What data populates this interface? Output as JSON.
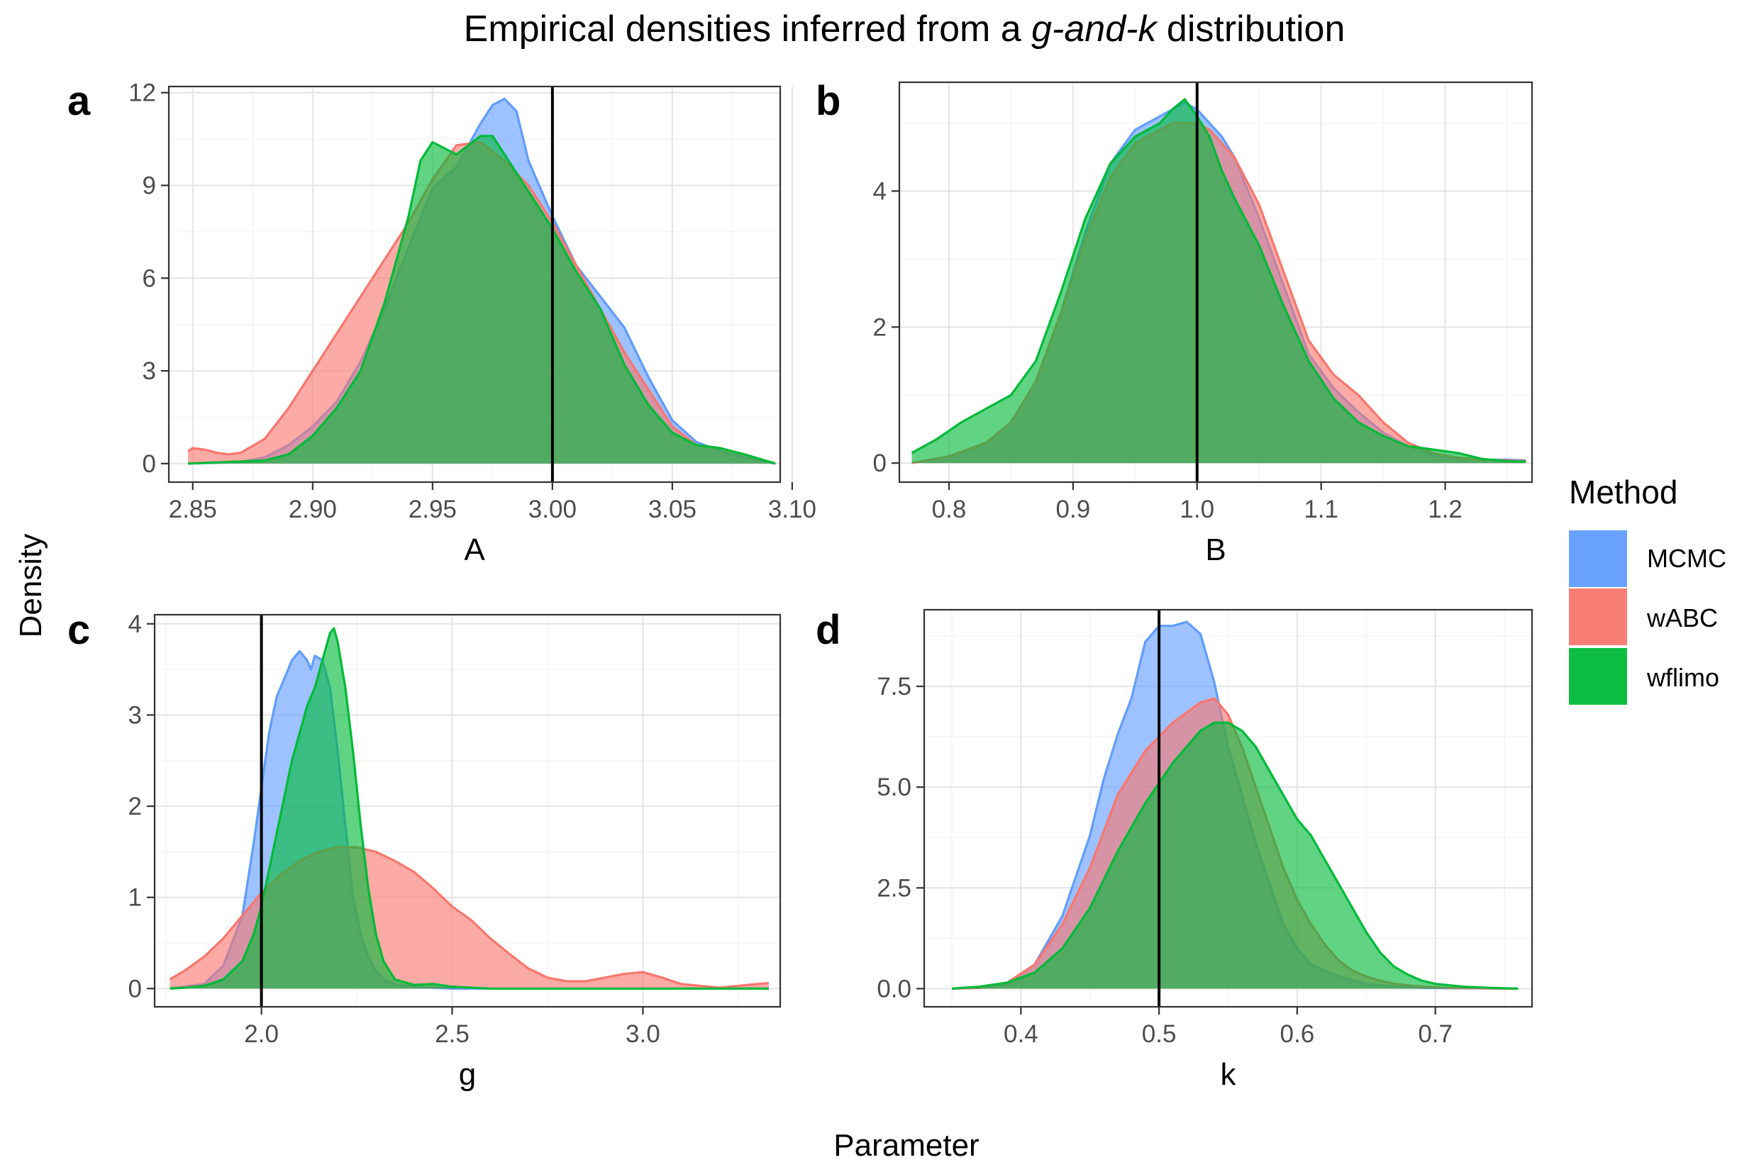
{
  "title": {
    "prefix": "Empirical densities inferred from a ",
    "italic": "g-and-k",
    "suffix": " distribution"
  },
  "shared_y_label": "Density",
  "shared_x_label": "Parameter",
  "legend": {
    "title": "Method",
    "entries": [
      {
        "name": "MCMC",
        "color": "#619CFF"
      },
      {
        "name": "wABC",
        "color": "#F8766D"
      },
      {
        "name": "wflimo",
        "color": "#00BA38"
      }
    ]
  },
  "chart_data": [
    {
      "type": "area",
      "panel": "a",
      "xlabel": "A",
      "xlim": [
        2.84,
        3.095
      ],
      "ylim": [
        -0.6,
        12.2
      ],
      "xticks": [
        2.85,
        2.9,
        2.95,
        3.0,
        3.05,
        3.1
      ],
      "xtick_labels": [
        "2.85",
        "2.90",
        "2.95",
        "3.00",
        "3.05",
        "3.10"
      ],
      "yticks": [
        0,
        3,
        6,
        9,
        12
      ],
      "ytick_labels": [
        "0",
        "3",
        "6",
        "9",
        "12"
      ],
      "true_value": 3.0,
      "series": [
        {
          "name": "MCMC",
          "x": [
            2.848,
            2.87,
            2.88,
            2.89,
            2.9,
            2.91,
            2.92,
            2.93,
            2.94,
            2.95,
            2.96,
            2.97,
            2.975,
            2.98,
            2.985,
            2.99,
            3.0,
            3.01,
            3.02,
            3.03,
            3.04,
            3.05,
            3.06,
            3.07,
            3.08,
            3.093
          ],
          "y": [
            0,
            0.05,
            0.2,
            0.6,
            1.2,
            2.0,
            3.3,
            5.0,
            7.0,
            8.9,
            9.6,
            11.0,
            11.6,
            11.8,
            11.4,
            9.8,
            8.0,
            6.4,
            5.4,
            4.4,
            2.8,
            1.4,
            0.7,
            0.4,
            0.2,
            0
          ]
        },
        {
          "name": "wABC",
          "x": [
            2.848,
            2.85,
            2.855,
            2.86,
            2.865,
            2.87,
            2.88,
            2.89,
            2.9,
            2.91,
            2.92,
            2.93,
            2.94,
            2.95,
            2.96,
            2.97,
            2.98,
            2.99,
            3.0,
            3.01,
            3.02,
            3.03,
            3.04,
            3.05,
            3.06,
            3.07,
            3.08,
            3.093
          ],
          "y": [
            0.4,
            0.5,
            0.45,
            0.35,
            0.3,
            0.35,
            0.8,
            1.8,
            3.0,
            4.2,
            5.4,
            6.6,
            7.8,
            9.2,
            10.3,
            10.4,
            9.8,
            9.0,
            7.8,
            6.4,
            5.0,
            3.6,
            2.4,
            1.2,
            0.6,
            0.5,
            0.3,
            0
          ]
        },
        {
          "name": "wflimo",
          "x": [
            2.848,
            2.88,
            2.89,
            2.9,
            2.91,
            2.92,
            2.93,
            2.94,
            2.945,
            2.95,
            2.955,
            2.96,
            2.965,
            2.97,
            2.975,
            2.98,
            2.99,
            3.0,
            3.01,
            3.02,
            3.03,
            3.04,
            3.05,
            3.06,
            3.07,
            3.08,
            3.093
          ],
          "y": [
            0,
            0.1,
            0.3,
            0.9,
            1.8,
            3.0,
            5.2,
            8.0,
            9.8,
            10.4,
            10.2,
            10.0,
            10.3,
            10.6,
            10.6,
            10.0,
            8.8,
            7.6,
            6.2,
            5.0,
            3.2,
            1.9,
            1.0,
            0.6,
            0.5,
            0.3,
            0
          ]
        }
      ]
    },
    {
      "type": "area",
      "panel": "b",
      "xlabel": "B",
      "xlim": [
        0.76,
        1.27
      ],
      "ylim": [
        -0.28,
        5.6
      ],
      "xticks": [
        0.8,
        0.9,
        1.0,
        1.1,
        1.2
      ],
      "xtick_labels": [
        "0.8",
        "0.9",
        "1.0",
        "1.1",
        "1.2"
      ],
      "yticks": [
        0,
        2,
        4
      ],
      "ytick_labels": [
        "0",
        "2",
        "4"
      ],
      "true_value": 1.0,
      "series": [
        {
          "name": "MCMC",
          "x": [
            0.77,
            0.8,
            0.83,
            0.85,
            0.87,
            0.89,
            0.91,
            0.93,
            0.95,
            0.97,
            0.98,
            0.99,
            1.0,
            1.01,
            1.02,
            1.03,
            1.05,
            1.07,
            1.09,
            1.11,
            1.13,
            1.15,
            1.17,
            1.19,
            1.21,
            1.23,
            1.25,
            1.265
          ],
          "y": [
            0,
            0.1,
            0.3,
            0.6,
            1.2,
            2.2,
            3.4,
            4.4,
            4.9,
            5.1,
            5.2,
            5.3,
            5.2,
            5.0,
            4.8,
            4.5,
            3.6,
            2.6,
            1.6,
            1.1,
            0.75,
            0.45,
            0.25,
            0.12,
            0.07,
            0.05,
            0.05,
            0.04
          ]
        },
        {
          "name": "wABC",
          "x": [
            0.77,
            0.8,
            0.83,
            0.85,
            0.87,
            0.89,
            0.91,
            0.93,
            0.95,
            0.97,
            0.98,
            0.99,
            1.0,
            1.01,
            1.02,
            1.03,
            1.05,
            1.07,
            1.09,
            1.11,
            1.13,
            1.15,
            1.17,
            1.19,
            1.21,
            1.23,
            1.25,
            1.265
          ],
          "y": [
            0,
            0.1,
            0.3,
            0.6,
            1.2,
            2.2,
            3.3,
            4.2,
            4.7,
            4.9,
            5.0,
            5.0,
            5.0,
            4.9,
            4.7,
            4.5,
            3.8,
            2.8,
            1.8,
            1.3,
            1.0,
            0.6,
            0.3,
            0.15,
            0.08,
            0.05,
            0.04,
            0.03
          ]
        },
        {
          "name": "wflimo",
          "x": [
            0.77,
            0.79,
            0.81,
            0.83,
            0.85,
            0.87,
            0.89,
            0.91,
            0.93,
            0.95,
            0.97,
            0.98,
            0.99,
            1.0,
            1.01,
            1.02,
            1.03,
            1.05,
            1.07,
            1.09,
            1.11,
            1.13,
            1.15,
            1.17,
            1.19,
            1.21,
            1.23,
            1.25,
            1.265
          ],
          "y": [
            0.15,
            0.35,
            0.6,
            0.8,
            1.0,
            1.5,
            2.5,
            3.6,
            4.4,
            4.8,
            5.0,
            5.2,
            5.35,
            5.1,
            4.8,
            4.3,
            3.9,
            3.2,
            2.3,
            1.5,
            0.95,
            0.6,
            0.4,
            0.25,
            0.2,
            0.15,
            0.06,
            0.03,
            0.02
          ]
        }
      ]
    },
    {
      "type": "area",
      "panel": "c",
      "xlabel": "g",
      "xlim": [
        1.72,
        3.36
      ],
      "ylim": [
        -0.2,
        4.1
      ],
      "xticks": [
        2.0,
        2.5,
        3.0
      ],
      "xtick_labels": [
        "2.0",
        "2.5",
        "3.0"
      ],
      "yticks": [
        0,
        1,
        2,
        3,
        4
      ],
      "ytick_labels": [
        "0",
        "1",
        "2",
        "3",
        "4"
      ],
      "true_value": 2.0,
      "series": [
        {
          "name": "MCMC",
          "x": [
            1.76,
            1.85,
            1.9,
            1.95,
            1.98,
            2.0,
            2.02,
            2.04,
            2.06,
            2.08,
            2.1,
            2.12,
            2.13,
            2.14,
            2.16,
            2.18,
            2.2,
            2.22,
            2.24,
            2.26,
            2.28,
            2.3,
            2.32,
            2.35,
            2.4,
            2.45,
            2.5,
            2.6,
            3.33
          ],
          "y": [
            0,
            0.05,
            0.25,
            0.8,
            1.6,
            2.2,
            2.8,
            3.2,
            3.4,
            3.6,
            3.7,
            3.6,
            3.5,
            3.65,
            3.6,
            3.3,
            2.6,
            1.8,
            1.0,
            0.6,
            0.35,
            0.2,
            0.1,
            0.05,
            0.02,
            0.01,
            0,
            0,
            0
          ]
        },
        {
          "name": "wABC",
          "x": [
            1.76,
            1.8,
            1.85,
            1.9,
            1.95,
            2.0,
            2.05,
            2.1,
            2.15,
            2.2,
            2.25,
            2.3,
            2.35,
            2.4,
            2.45,
            2.5,
            2.55,
            2.6,
            2.65,
            2.7,
            2.75,
            2.8,
            2.85,
            2.9,
            2.95,
            3.0,
            3.05,
            3.1,
            3.2,
            3.3,
            3.33
          ],
          "y": [
            0.1,
            0.2,
            0.35,
            0.55,
            0.8,
            1.05,
            1.25,
            1.4,
            1.5,
            1.55,
            1.55,
            1.5,
            1.4,
            1.28,
            1.1,
            0.9,
            0.75,
            0.55,
            0.38,
            0.22,
            0.12,
            0.08,
            0.08,
            0.12,
            0.16,
            0.18,
            0.12,
            0.05,
            0.01,
            0.05,
            0.06
          ]
        },
        {
          "name": "wflimo",
          "x": [
            1.76,
            1.8,
            1.85,
            1.9,
            1.95,
            1.98,
            2.0,
            2.02,
            2.04,
            2.06,
            2.08,
            2.1,
            2.12,
            2.14,
            2.16,
            2.18,
            2.19,
            2.2,
            2.22,
            2.24,
            2.26,
            2.28,
            2.3,
            2.32,
            2.35,
            2.4,
            2.45,
            2.5,
            2.6,
            3.33
          ],
          "y": [
            0,
            0.01,
            0.03,
            0.1,
            0.3,
            0.6,
            0.9,
            1.3,
            1.7,
            2.1,
            2.5,
            2.8,
            3.1,
            3.3,
            3.6,
            3.9,
            3.95,
            3.8,
            3.3,
            2.6,
            1.8,
            1.1,
            0.6,
            0.3,
            0.1,
            0.04,
            0.05,
            0.02,
            0,
            0
          ]
        }
      ]
    },
    {
      "type": "area",
      "panel": "d",
      "xlabel": "k",
      "xlim": [
        0.33,
        0.77
      ],
      "ylim": [
        -0.45,
        9.4
      ],
      "xticks": [
        0.4,
        0.5,
        0.6,
        0.7
      ],
      "xtick_labels": [
        "0.4",
        "0.5",
        "0.6",
        "0.7"
      ],
      "yticks": [
        0,
        2.5,
        5.0,
        7.5
      ],
      "ytick_labels": [
        "0.0",
        "2.5",
        "5.0",
        "7.5"
      ],
      "true_value": 0.5,
      "series": [
        {
          "name": "MCMC",
          "x": [
            0.35,
            0.37,
            0.39,
            0.41,
            0.43,
            0.45,
            0.46,
            0.47,
            0.48,
            0.49,
            0.5,
            0.51,
            0.52,
            0.53,
            0.54,
            0.55,
            0.56,
            0.57,
            0.58,
            0.59,
            0.6,
            0.61,
            0.63,
            0.65,
            0.67,
            0.69,
            0.71,
            0.76
          ],
          "y": [
            0,
            0.02,
            0.1,
            0.6,
            1.8,
            3.8,
            5.2,
            6.3,
            7.2,
            8.6,
            9.0,
            9.0,
            9.1,
            8.8,
            7.6,
            6.0,
            4.8,
            3.6,
            2.6,
            1.6,
            1.0,
            0.6,
            0.3,
            0.12,
            0.05,
            0.02,
            0.01,
            0
          ]
        },
        {
          "name": "wABC",
          "x": [
            0.35,
            0.37,
            0.39,
            0.41,
            0.43,
            0.45,
            0.47,
            0.49,
            0.51,
            0.53,
            0.54,
            0.55,
            0.56,
            0.57,
            0.58,
            0.59,
            0.6,
            0.61,
            0.62,
            0.63,
            0.64,
            0.65,
            0.66,
            0.67,
            0.69,
            0.71,
            0.76
          ],
          "y": [
            0,
            0.02,
            0.15,
            0.6,
            1.6,
            3.0,
            4.8,
            5.9,
            6.6,
            7.1,
            7.2,
            6.8,
            6.0,
            5.0,
            4.0,
            3.0,
            2.2,
            1.6,
            1.1,
            0.7,
            0.45,
            0.3,
            0.2,
            0.12,
            0.05,
            0.02,
            0
          ]
        },
        {
          "name": "wflimo",
          "x": [
            0.35,
            0.37,
            0.39,
            0.41,
            0.43,
            0.45,
            0.47,
            0.49,
            0.51,
            0.53,
            0.54,
            0.55,
            0.56,
            0.57,
            0.58,
            0.59,
            0.6,
            0.61,
            0.62,
            0.63,
            0.64,
            0.65,
            0.66,
            0.67,
            0.68,
            0.69,
            0.7,
            0.72,
            0.74,
            0.76
          ],
          "y": [
            0,
            0.05,
            0.15,
            0.4,
            1.0,
            2.0,
            3.4,
            4.6,
            5.6,
            6.4,
            6.6,
            6.6,
            6.4,
            6.0,
            5.4,
            4.8,
            4.2,
            3.8,
            3.2,
            2.6,
            2.0,
            1.4,
            0.9,
            0.55,
            0.35,
            0.2,
            0.12,
            0.05,
            0.02,
            0
          ]
        }
      ]
    }
  ]
}
